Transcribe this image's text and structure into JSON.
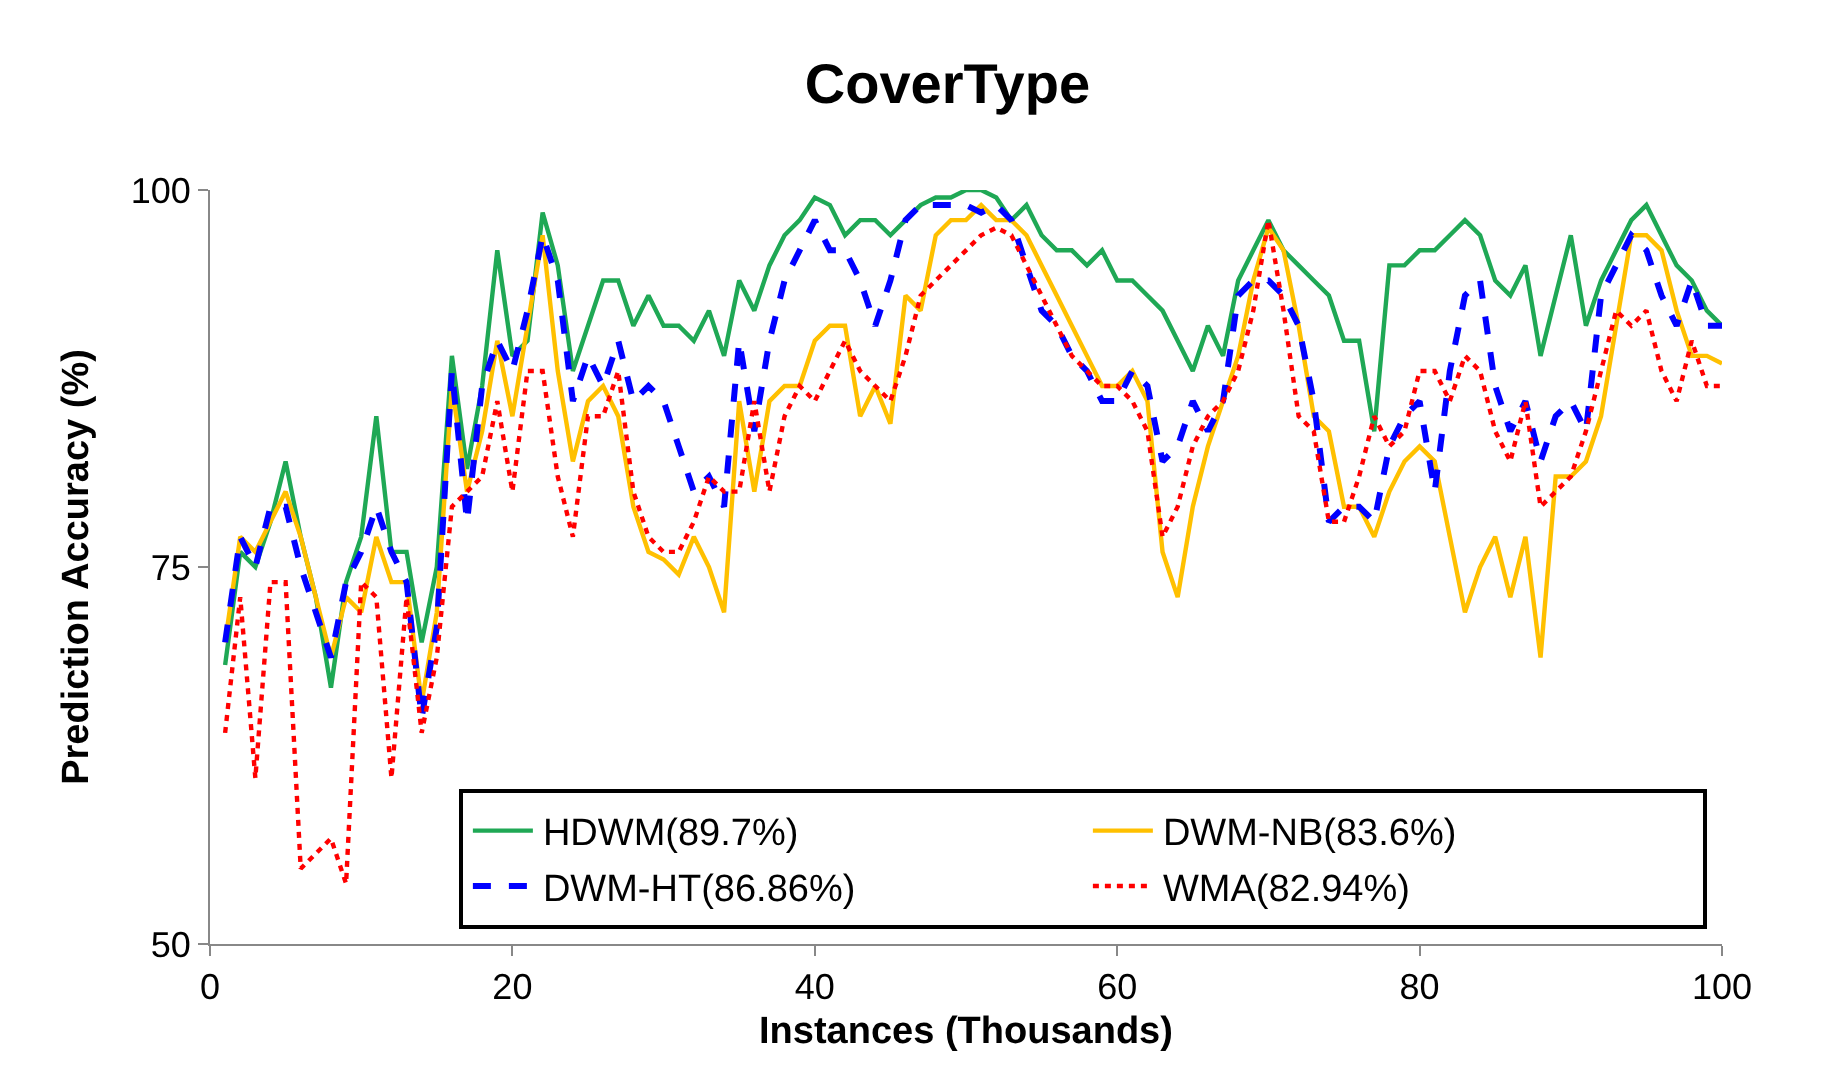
{
  "chart_data": {
    "type": "line",
    "title": "CoverType",
    "xlabel": "Instances (Thousands)",
    "ylabel": "Prediction Accuracy (%)",
    "x": [
      1,
      2,
      3,
      4,
      5,
      6,
      7,
      8,
      9,
      10,
      11,
      12,
      13,
      14,
      15,
      16,
      17,
      18,
      19,
      20,
      21,
      22,
      23,
      24,
      25,
      26,
      27,
      28,
      29,
      30,
      31,
      32,
      33,
      34,
      35,
      36,
      37,
      38,
      39,
      40,
      41,
      42,
      43,
      44,
      45,
      46,
      47,
      48,
      49,
      50,
      51,
      52,
      53,
      54,
      55,
      56,
      57,
      58,
      59,
      60,
      61,
      62,
      63,
      64,
      65,
      66,
      67,
      68,
      69,
      70,
      71,
      72,
      73,
      74,
      75,
      76,
      77,
      78,
      79,
      80,
      81,
      82,
      83,
      84,
      85,
      86,
      87,
      88,
      89,
      90,
      91,
      92,
      93,
      94,
      95,
      96,
      97,
      98,
      99,
      100
    ],
    "xlim": [
      0,
      100
    ],
    "xticks": [
      0,
      20,
      40,
      60,
      80,
      100
    ],
    "ylim": [
      50,
      100
    ],
    "yticks": [
      50,
      75,
      100
    ],
    "legend": "bottom right",
    "marker": "none",
    "series": [
      {
        "name": "HDWM(89.7%)",
        "color": "#1fa855",
        "line_style": "solid",
        "values": [
          68.5,
          76,
          75,
          78,
          82,
          77,
          73,
          67,
          74,
          77,
          85,
          76,
          76,
          70,
          75,
          89,
          81.5,
          87,
          96,
          89,
          90,
          98.5,
          95,
          88,
          91,
          94,
          94,
          91,
          93,
          91,
          91,
          90,
          92,
          89,
          94,
          92,
          95,
          97,
          98,
          99.5,
          99,
          97,
          98,
          98,
          97,
          98,
          99,
          99.5,
          99.5,
          100,
          100,
          99.5,
          98,
          99,
          97,
          96,
          96,
          95,
          96,
          94,
          94,
          93,
          92,
          90,
          88,
          91,
          89,
          94,
          96,
          98,
          96,
          95,
          94,
          93,
          90,
          90,
          84,
          95,
          95,
          96,
          96,
          97,
          98,
          97,
          94,
          93,
          95,
          89,
          93,
          97,
          91,
          94,
          96,
          98,
          99,
          97,
          95,
          94,
          92,
          91
        ]
      },
      {
        "name": "DWM-NB(83.6%)",
        "color": "#ffc000",
        "line_style": "solid",
        "values": [
          70,
          77,
          76,
          78,
          80,
          77,
          73,
          69,
          73,
          72,
          77,
          74,
          74,
          66,
          72,
          87,
          80,
          84,
          90,
          85,
          91,
          97,
          88,
          82,
          86,
          87,
          85,
          79,
          76,
          75.5,
          74.5,
          77,
          75,
          72,
          86,
          80,
          86,
          87,
          87,
          90,
          91,
          91,
          85,
          87,
          84.5,
          93,
          92,
          97,
          98,
          98,
          99,
          98,
          98,
          97,
          95,
          93,
          91,
          89,
          87,
          87,
          88,
          86,
          76,
          73,
          79,
          83,
          86,
          89,
          94,
          97.5,
          96,
          91,
          85,
          84,
          79,
          79,
          77,
          80,
          82,
          83,
          82,
          77,
          72,
          75,
          77,
          73,
          77,
          69,
          81,
          81,
          82,
          85,
          91,
          97,
          97,
          96,
          92,
          89,
          89,
          88.5
        ]
      },
      {
        "name": "DWM-HT(86.86%)",
        "color": "#0000ff",
        "line_style": "dashed",
        "values": [
          70,
          77,
          75,
          79,
          79,
          75,
          72,
          69,
          74,
          76,
          79,
          76,
          74,
          65,
          71,
          88,
          78,
          87,
          90,
          88,
          92,
          97,
          94,
          86,
          89,
          87,
          90,
          86,
          87,
          86,
          83,
          80,
          81,
          79,
          90,
          84,
          90,
          94,
          96,
          98,
          96,
          96,
          94,
          91,
          94,
          98,
          99,
          99,
          99,
          99,
          98.5,
          99,
          98,
          95,
          92,
          91,
          89,
          88,
          86,
          86,
          88,
          87,
          82,
          83,
          86,
          84,
          86,
          93,
          94,
          94,
          93,
          91,
          86,
          78,
          79,
          79,
          78,
          83,
          85,
          86,
          80,
          88,
          93,
          94,
          87,
          84,
          86,
          82,
          85,
          86,
          84,
          93,
          95,
          97,
          96,
          93,
          91,
          94,
          91,
          91
        ]
      },
      {
        "name": "WMA(82.94%)",
        "color": "#ff0000",
        "line_style": "dotted",
        "values": [
          64,
          73,
          61,
          74,
          74,
          55,
          56,
          57,
          54,
          74,
          73,
          61,
          73,
          64,
          69,
          79,
          80,
          81,
          86,
          80,
          88,
          88,
          81,
          77,
          85,
          85,
          88,
          80,
          77,
          76,
          76,
          78,
          81,
          80,
          80,
          86,
          80,
          85,
          87,
          86,
          88,
          90,
          88,
          87,
          86,
          89,
          93,
          94,
          95,
          96,
          97,
          97.5,
          97,
          95,
          93,
          91,
          89,
          88,
          87,
          87,
          86,
          84,
          77,
          79,
          83,
          85,
          86,
          88,
          92,
          98,
          92,
          85,
          84,
          78,
          78,
          81,
          85,
          83,
          84,
          88,
          88,
          86,
          89,
          88,
          84,
          82,
          86,
          79,
          80,
          81,
          84,
          88,
          92,
          91,
          92,
          88,
          86,
          90,
          87,
          87
        ]
      }
    ]
  }
}
